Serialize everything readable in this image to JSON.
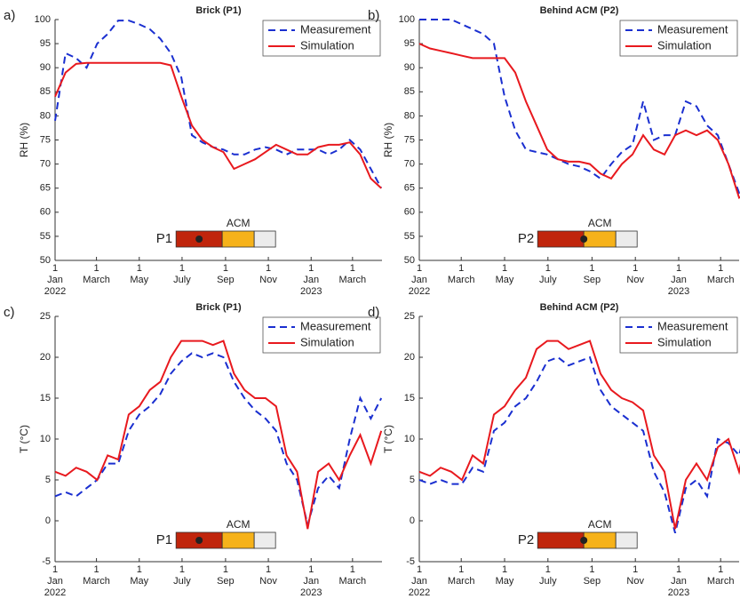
{
  "chart_data": [
    {
      "type": "line",
      "panel_label": "a)",
      "title": "Brick (P1)",
      "ylabel": "RH (%)",
      "x": [
        0,
        15,
        30,
        45,
        60,
        75,
        90,
        105,
        120,
        135,
        150,
        165,
        180,
        195,
        210,
        225,
        240,
        255,
        270,
        285,
        300,
        315,
        330,
        345,
        360,
        375,
        390,
        405,
        420,
        435,
        450,
        465
      ],
      "xlim": [
        0,
        466
      ],
      "xticks": [
        {
          "value": 0,
          "label": "1\nJan\n2022"
        },
        {
          "value": 59,
          "label": "1\nMarch"
        },
        {
          "value": 120,
          "label": "1\nMay"
        },
        {
          "value": 181,
          "label": "1\nJuly"
        },
        {
          "value": 243,
          "label": "1\nSep"
        },
        {
          "value": 304,
          "label": "1\nNov"
        },
        {
          "value": 365,
          "label": "1\nJan\n2023"
        },
        {
          "value": 424,
          "label": "1\nMarch"
        }
      ],
      "ylim": [
        50,
        100
      ],
      "yticks": [
        50,
        55,
        60,
        65,
        70,
        75,
        80,
        85,
        90,
        95,
        100
      ],
      "legend": "upper right",
      "inset_labels": [
        "P1",
        "ACM"
      ],
      "series": [
        {
          "name": "Measurement",
          "color": "#1a2fd0",
          "dashed": true,
          "values": [
            79,
            93,
            92,
            90,
            95,
            97,
            99.8,
            99.8,
            99,
            98,
            96,
            93,
            88,
            76,
            74.5,
            73.5,
            73,
            72,
            72,
            73,
            73.5,
            73,
            72,
            73,
            73,
            73,
            72,
            73,
            75,
            73,
            69,
            65
          ]
        },
        {
          "name": "Simulation",
          "color": "#e8191e",
          "dashed": false,
          "values": [
            84,
            89,
            90.8,
            91,
            91,
            91,
            91,
            91,
            91,
            91,
            91,
            90.5,
            84,
            78,
            75,
            73.5,
            72.5,
            69,
            70,
            71,
            72.5,
            74,
            73,
            72,
            72,
            73.5,
            74,
            74,
            74.5,
            72,
            67,
            65
          ]
        }
      ]
    },
    {
      "type": "line",
      "panel_label": "b)",
      "title": "Behind ACM (P2)",
      "ylabel": "RH (%)",
      "x": [
        0,
        15,
        30,
        45,
        60,
        75,
        90,
        105,
        120,
        135,
        150,
        165,
        180,
        195,
        210,
        225,
        240,
        255,
        270,
        285,
        300,
        315,
        330,
        345,
        360,
        375,
        390,
        405,
        420,
        435,
        450,
        465
      ],
      "xlim": [
        0,
        450
      ],
      "xticks": [
        {
          "value": 0,
          "label": "1\nJan\n2022"
        },
        {
          "value": 59,
          "label": "1\nMarch"
        },
        {
          "value": 120,
          "label": "1\nMay"
        },
        {
          "value": 181,
          "label": "1\nJuly"
        },
        {
          "value": 243,
          "label": "1\nSep"
        },
        {
          "value": 304,
          "label": "1\nNov"
        },
        {
          "value": 365,
          "label": "1\nJan\n2023"
        },
        {
          "value": 424,
          "label": "1\nMarch"
        }
      ],
      "ylim": [
        50,
        100
      ],
      "yticks": [
        50,
        55,
        60,
        65,
        70,
        75,
        80,
        85,
        90,
        95,
        100
      ],
      "legend": "upper right",
      "inset_labels": [
        "P2",
        "ACM"
      ],
      "series": [
        {
          "name": "Measurement",
          "color": "#1a2fd0",
          "dashed": true,
          "values": [
            100,
            100,
            100,
            100,
            99,
            98,
            97,
            95,
            84,
            77,
            73,
            72.5,
            72,
            71,
            70,
            69.5,
            68.5,
            67,
            70,
            72.5,
            74,
            83,
            75,
            76,
            76,
            83,
            82,
            78,
            76,
            70,
            64,
            65
          ]
        },
        {
          "name": "Simulation",
          "color": "#e8191e",
          "dashed": false,
          "values": [
            95,
            94,
            93.5,
            93,
            92.5,
            92,
            92,
            92,
            92,
            89,
            83,
            78,
            73,
            71,
            70.5,
            70.5,
            70,
            68,
            67,
            70,
            72,
            76,
            73,
            72,
            76,
            77,
            76,
            77,
            75,
            70,
            63,
            64
          ]
        }
      ]
    },
    {
      "type": "line",
      "panel_label": "c)",
      "title": "Brick (P1)",
      "ylabel": "T (°C)",
      "x": [
        0,
        15,
        30,
        45,
        60,
        75,
        90,
        105,
        120,
        135,
        150,
        165,
        180,
        195,
        210,
        225,
        240,
        255,
        270,
        285,
        300,
        315,
        330,
        345,
        360,
        375,
        390,
        405,
        420,
        435,
        450,
        465
      ],
      "xlim": [
        0,
        466
      ],
      "xticks": [
        {
          "value": 0,
          "label": "1\nJan\n2022"
        },
        {
          "value": 59,
          "label": "1\nMarch"
        },
        {
          "value": 120,
          "label": "1\nMay"
        },
        {
          "value": 181,
          "label": "1\nJuly"
        },
        {
          "value": 243,
          "label": "1\nSep"
        },
        {
          "value": 304,
          "label": "1\nNov"
        },
        {
          "value": 365,
          "label": "1\nJan\n2023"
        },
        {
          "value": 424,
          "label": "1\nMarch"
        }
      ],
      "ylim": [
        -5,
        25
      ],
      "yticks": [
        -5,
        0,
        5,
        10,
        15,
        20,
        25
      ],
      "legend": "upper right",
      "inset_labels": [
        "P1",
        "ACM"
      ],
      "series": [
        {
          "name": "Measurement",
          "color": "#1a2fd0",
          "dashed": true,
          "values": [
            3,
            3.5,
            3,
            4,
            5,
            7,
            7,
            11,
            13,
            14,
            15.5,
            18,
            19.5,
            20.5,
            20,
            20.5,
            20,
            17,
            15,
            13.5,
            12.5,
            11,
            7,
            5,
            -0.5,
            4,
            5.5,
            4,
            10,
            15,
            12.5,
            15
          ]
        },
        {
          "name": "Simulation",
          "color": "#e8191e",
          "dashed": false,
          "values": [
            6,
            5.5,
            6.5,
            6,
            5,
            8,
            7.5,
            13,
            14,
            16,
            17,
            20,
            22,
            22,
            22,
            21.5,
            22,
            18,
            16,
            15,
            15,
            14,
            8,
            6,
            -1,
            6,
            7,
            5,
            8,
            10.5,
            7,
            11
          ]
        }
      ]
    },
    {
      "type": "line",
      "panel_label": "d)",
      "title": "Behind ACM (P2)",
      "ylabel": "T (°C)",
      "x": [
        0,
        15,
        30,
        45,
        60,
        75,
        90,
        105,
        120,
        135,
        150,
        165,
        180,
        195,
        210,
        225,
        240,
        255,
        270,
        285,
        300,
        315,
        330,
        345,
        360,
        375,
        390,
        405,
        420,
        435,
        450,
        465
      ],
      "xlim": [
        0,
        450
      ],
      "xticks": [
        {
          "value": 0,
          "label": "1\nJan\n2022"
        },
        {
          "value": 59,
          "label": "1\nMarch"
        },
        {
          "value": 120,
          "label": "1\nMay"
        },
        {
          "value": 181,
          "label": "1\nJuly"
        },
        {
          "value": 243,
          "label": "1\nSep"
        },
        {
          "value": 304,
          "label": "1\nNov"
        },
        {
          "value": 365,
          "label": "1\nJan\n2023"
        },
        {
          "value": 424,
          "label": "1\nMarch"
        }
      ],
      "ylim": [
        -5,
        25
      ],
      "yticks": [
        -5,
        0,
        5,
        10,
        15,
        20,
        25
      ],
      "legend": "upper right",
      "inset_labels": [
        "P2",
        "ACM"
      ],
      "series": [
        {
          "name": "Measurement",
          "color": "#1a2fd0",
          "dashed": true,
          "values": [
            5,
            4.5,
            5,
            4.5,
            4.5,
            6.5,
            6,
            11,
            12,
            14,
            15,
            17,
            19.5,
            20,
            19,
            19.5,
            20,
            16,
            14,
            13,
            12,
            11,
            6,
            3.5,
            -1.5,
            4,
            5,
            3,
            10,
            9.5,
            8,
            13
          ]
        },
        {
          "name": "Simulation",
          "color": "#e8191e",
          "dashed": false,
          "values": [
            6,
            5.5,
            6.5,
            6,
            5,
            8,
            7,
            13,
            14,
            16,
            17.5,
            21,
            22,
            22,
            21,
            21.5,
            22,
            18,
            16,
            15,
            14.5,
            13.5,
            8,
            6,
            -1,
            5,
            7,
            5,
            9,
            10,
            6,
            12
          ]
        }
      ]
    }
  ]
}
